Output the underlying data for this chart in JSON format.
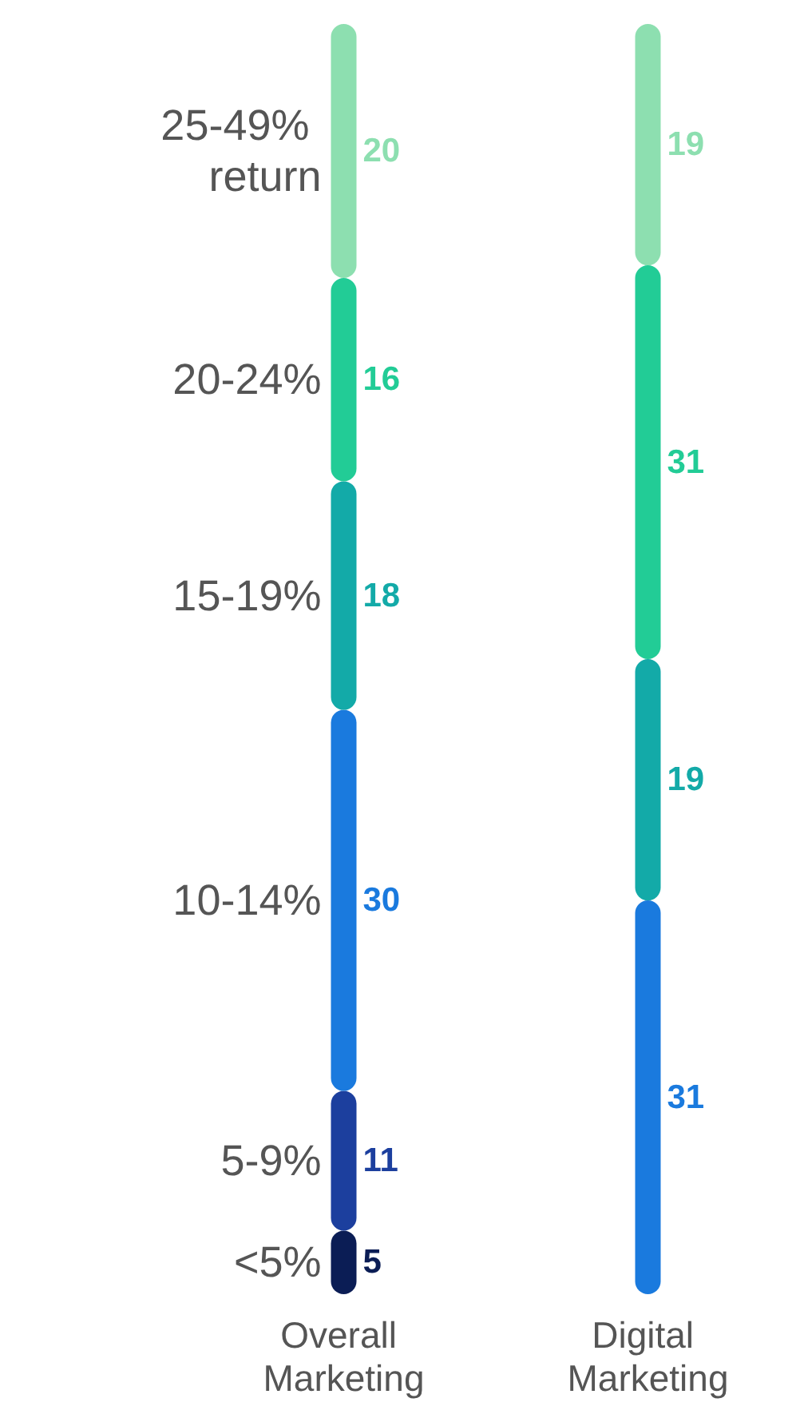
{
  "chart_data": {
    "type": "bar",
    "stacked": true,
    "tick_labels": "x",
    "categories": [
      "Overall Marketing",
      "Digital Marketing"
    ],
    "series": [
      {
        "name": "<5%",
        "color": "#0b1d55",
        "values": [
          5,
          0
        ],
        "value_labels": [
          "5",
          null
        ]
      },
      {
        "name": "5-9%",
        "color": "#1c3f9e",
        "values": [
          11,
          0
        ],
        "value_labels": [
          "11",
          null
        ]
      },
      {
        "name": "10-14%",
        "color": "#1a7ade",
        "values": [
          30,
          31
        ],
        "value_labels": [
          "30",
          "31"
        ]
      },
      {
        "name": "15-19%",
        "color": "#13aaa8",
        "values": [
          18,
          19
        ],
        "value_labels": [
          "18",
          "19"
        ]
      },
      {
        "name": "20-24%",
        "color": "#22cc96",
        "values": [
          16,
          31
        ],
        "value_labels": [
          "16",
          "31"
        ]
      },
      {
        "name": "25-49% return",
        "color": "#8ddfb0",
        "values": [
          20,
          19
        ],
        "value_labels": [
          "20",
          "19"
        ]
      }
    ]
  }
}
